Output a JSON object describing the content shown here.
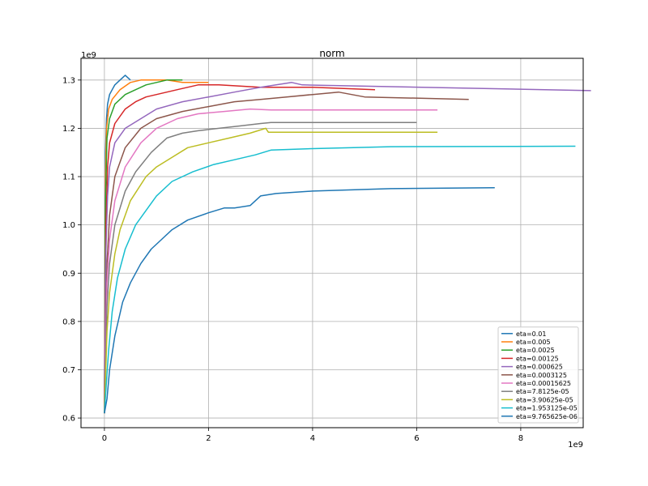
{
  "chart_data": {
    "type": "line",
    "title": "norm",
    "xlabel": "",
    "ylabel": "",
    "x_offset_text": "1e9",
    "y_offset_text": "1e9",
    "xlim": [
      -0.45,
      9.2
    ],
    "ylim": [
      0.58,
      1.345
    ],
    "x_ticks": [
      0,
      2,
      4,
      6,
      8
    ],
    "x_tick_labels": [
      "0",
      "2",
      "4",
      "6",
      "8"
    ],
    "y_ticks": [
      0.6,
      0.7,
      0.8,
      0.9,
      1.0,
      1.1,
      1.2,
      1.3
    ],
    "y_tick_labels": [
      "0.6",
      "0.7",
      "0.8",
      "0.9",
      "1.0",
      "1.1",
      "1.2",
      "1.3"
    ],
    "grid": true,
    "legend_position": "lower-right",
    "series": [
      {
        "name": "eta=0.01",
        "color": "#1f77b4",
        "x": [
          0,
          0.01,
          0.02,
          0.04,
          0.06,
          0.1,
          0.15,
          0.2,
          0.3,
          0.4,
          0.5
        ],
        "y": [
          0.61,
          0.9,
          1.15,
          1.22,
          1.25,
          1.27,
          1.28,
          1.29,
          1.3,
          1.31,
          1.3
        ]
      },
      {
        "name": "eta=0.005",
        "color": "#ff7f0e",
        "x": [
          0,
          0.01,
          0.02,
          0.04,
          0.08,
          0.15,
          0.3,
          0.5,
          0.7,
          0.9,
          1.2,
          1.5,
          2.0
        ],
        "y": [
          0.61,
          0.88,
          1.1,
          1.2,
          1.24,
          1.26,
          1.28,
          1.295,
          1.3,
          1.3,
          1.3,
          1.295,
          1.295
        ]
      },
      {
        "name": "eta=0.0025",
        "color": "#2ca02c",
        "x": [
          0,
          0.01,
          0.02,
          0.05,
          0.1,
          0.2,
          0.4,
          0.6,
          0.8,
          1.0,
          1.2,
          1.5
        ],
        "y": [
          0.61,
          0.85,
          1.05,
          1.18,
          1.22,
          1.25,
          1.27,
          1.28,
          1.29,
          1.295,
          1.3,
          1.3
        ]
      },
      {
        "name": "eta=0.00125",
        "color": "#d62728",
        "x": [
          0,
          0.01,
          0.03,
          0.06,
          0.1,
          0.2,
          0.4,
          0.6,
          0.8,
          1.0,
          1.4,
          1.8,
          2.2,
          3.0,
          4.0,
          5.2
        ],
        "y": [
          0.61,
          0.8,
          1.0,
          1.12,
          1.17,
          1.21,
          1.24,
          1.255,
          1.265,
          1.27,
          1.28,
          1.29,
          1.29,
          1.285,
          1.285,
          1.28
        ]
      },
      {
        "name": "eta=0.000625",
        "color": "#9467bd",
        "x": [
          0,
          0.01,
          0.03,
          0.06,
          0.1,
          0.2,
          0.4,
          0.7,
          1.0,
          1.5,
          2.0,
          2.5,
          3.0,
          3.6,
          3.8,
          9.35
        ],
        "y": [
          0.61,
          0.76,
          0.95,
          1.06,
          1.12,
          1.17,
          1.2,
          1.22,
          1.24,
          1.255,
          1.265,
          1.275,
          1.285,
          1.295,
          1.29,
          1.278
        ]
      },
      {
        "name": "eta=0.0003125",
        "color": "#8c564b",
        "x": [
          0,
          0.02,
          0.05,
          0.1,
          0.2,
          0.4,
          0.7,
          1.0,
          1.5,
          2.0,
          2.5,
          3.0,
          3.5,
          4.0,
          4.5,
          5.0,
          7.0
        ],
        "y": [
          0.61,
          0.74,
          0.92,
          1.02,
          1.1,
          1.16,
          1.2,
          1.22,
          1.235,
          1.245,
          1.255,
          1.26,
          1.265,
          1.27,
          1.275,
          1.265,
          1.26
        ]
      },
      {
        "name": "eta=0.00015625",
        "color": "#e377c2",
        "x": [
          0,
          0.02,
          0.05,
          0.1,
          0.2,
          0.4,
          0.7,
          1.0,
          1.4,
          1.8,
          2.3,
          2.8,
          3.2,
          6.4
        ],
        "y": [
          0.61,
          0.72,
          0.88,
          0.97,
          1.05,
          1.12,
          1.17,
          1.2,
          1.22,
          1.23,
          1.235,
          1.24,
          1.238,
          1.238
        ]
      },
      {
        "name": "eta=7.8125e-05",
        "color": "#7f7f7f",
        "x": [
          0,
          0.02,
          0.05,
          0.1,
          0.2,
          0.4,
          0.6,
          0.9,
          1.2,
          1.5,
          1.8,
          2.2,
          2.6,
          3.0,
          3.2,
          4.0,
          6.0
        ],
        "y": [
          0.61,
          0.7,
          0.83,
          0.92,
          1.0,
          1.07,
          1.11,
          1.15,
          1.18,
          1.19,
          1.195,
          1.2,
          1.205,
          1.21,
          1.212,
          1.212,
          1.212
        ]
      },
      {
        "name": "eta=3.90625e-05",
        "color": "#bcbd22",
        "x": [
          0,
          0.02,
          0.05,
          0.1,
          0.2,
          0.3,
          0.5,
          0.8,
          1.0,
          1.3,
          1.6,
          2.0,
          2.4,
          2.8,
          3.1,
          3.15,
          6.4
        ],
        "y": [
          0.61,
          0.68,
          0.78,
          0.86,
          0.94,
          0.99,
          1.05,
          1.1,
          1.12,
          1.14,
          1.16,
          1.17,
          1.18,
          1.19,
          1.2,
          1.192,
          1.192
        ]
      },
      {
        "name": "eta=1.953125e-05",
        "color": "#17becf",
        "x": [
          0,
          0.03,
          0.08,
          0.15,
          0.25,
          0.4,
          0.6,
          0.8,
          1.0,
          1.3,
          1.7,
          2.1,
          2.5,
          2.9,
          3.2,
          4.0,
          5.5,
          9.05
        ],
        "y": [
          0.61,
          0.66,
          0.74,
          0.82,
          0.89,
          0.95,
          1.0,
          1.03,
          1.06,
          1.09,
          1.11,
          1.125,
          1.135,
          1.145,
          1.155,
          1.158,
          1.162,
          1.163
        ]
      },
      {
        "name": "eta=9.765625e-06",
        "color": "#1f77b4",
        "x": [
          0,
          0.05,
          0.1,
          0.2,
          0.35,
          0.5,
          0.7,
          0.9,
          1.1,
          1.3,
          1.6,
          2.0,
          2.3,
          2.5,
          2.8,
          3.0,
          3.3,
          4.0,
          5.5,
          7.5
        ],
        "y": [
          0.61,
          0.64,
          0.7,
          0.77,
          0.84,
          0.88,
          0.92,
          0.95,
          0.97,
          0.99,
          1.01,
          1.025,
          1.035,
          1.035,
          1.04,
          1.06,
          1.065,
          1.07,
          1.075,
          1.077
        ]
      }
    ]
  }
}
